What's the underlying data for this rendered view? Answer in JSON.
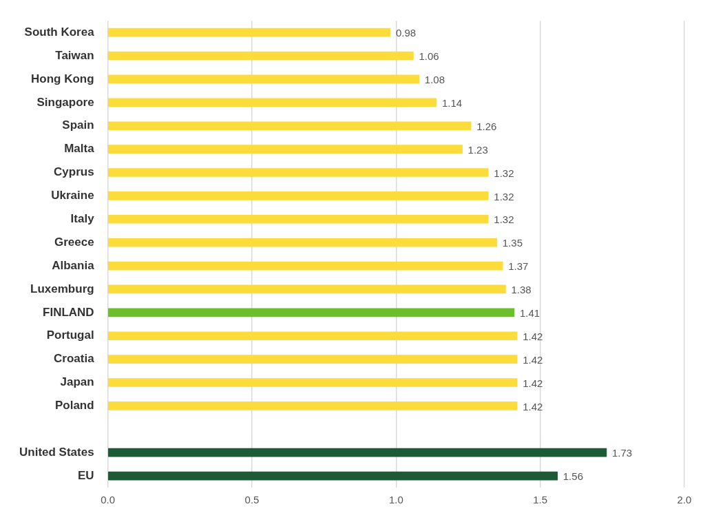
{
  "chart_data": {
    "type": "bar",
    "orientation": "horizontal",
    "categories": [
      "South Korea",
      "Taiwan",
      "Hong Kong",
      "Singapore",
      "Spain",
      "Malta",
      "Cyprus",
      "Ukraine",
      "Italy",
      "Greece",
      "Albania",
      "Luxemburg",
      "FINLAND",
      "Portugal",
      "Croatia",
      "Japan",
      "Poland",
      null,
      "United States",
      "EU"
    ],
    "values": [
      0.98,
      1.06,
      1.08,
      1.14,
      1.26,
      1.23,
      1.32,
      1.32,
      1.32,
      1.35,
      1.37,
      1.38,
      1.41,
      1.42,
      1.42,
      1.42,
      1.42,
      null,
      1.73,
      1.56
    ],
    "colors": [
      "#fcdc3b",
      "#fcdc3b",
      "#fcdc3b",
      "#fcdc3b",
      "#fcdc3b",
      "#fcdc3b",
      "#fcdc3b",
      "#fcdc3b",
      "#fcdc3b",
      "#fcdc3b",
      "#fcdc3b",
      "#fcdc3b",
      "#6cbf2b",
      "#fcdc3b",
      "#fcdc3b",
      "#fcdc3b",
      "#fcdc3b",
      null,
      "#1d5a36",
      "#1d5a36"
    ],
    "xlim": [
      0,
      2
    ],
    "xticks": [
      {
        "value": 0,
        "label": "0.0"
      },
      0.5,
      {
        "value": 1,
        "label": "1.0"
      },
      1.5,
      {
        "value": 2,
        "label": "2.0"
      }
    ],
    "grid": true,
    "data_labels": true
  }
}
